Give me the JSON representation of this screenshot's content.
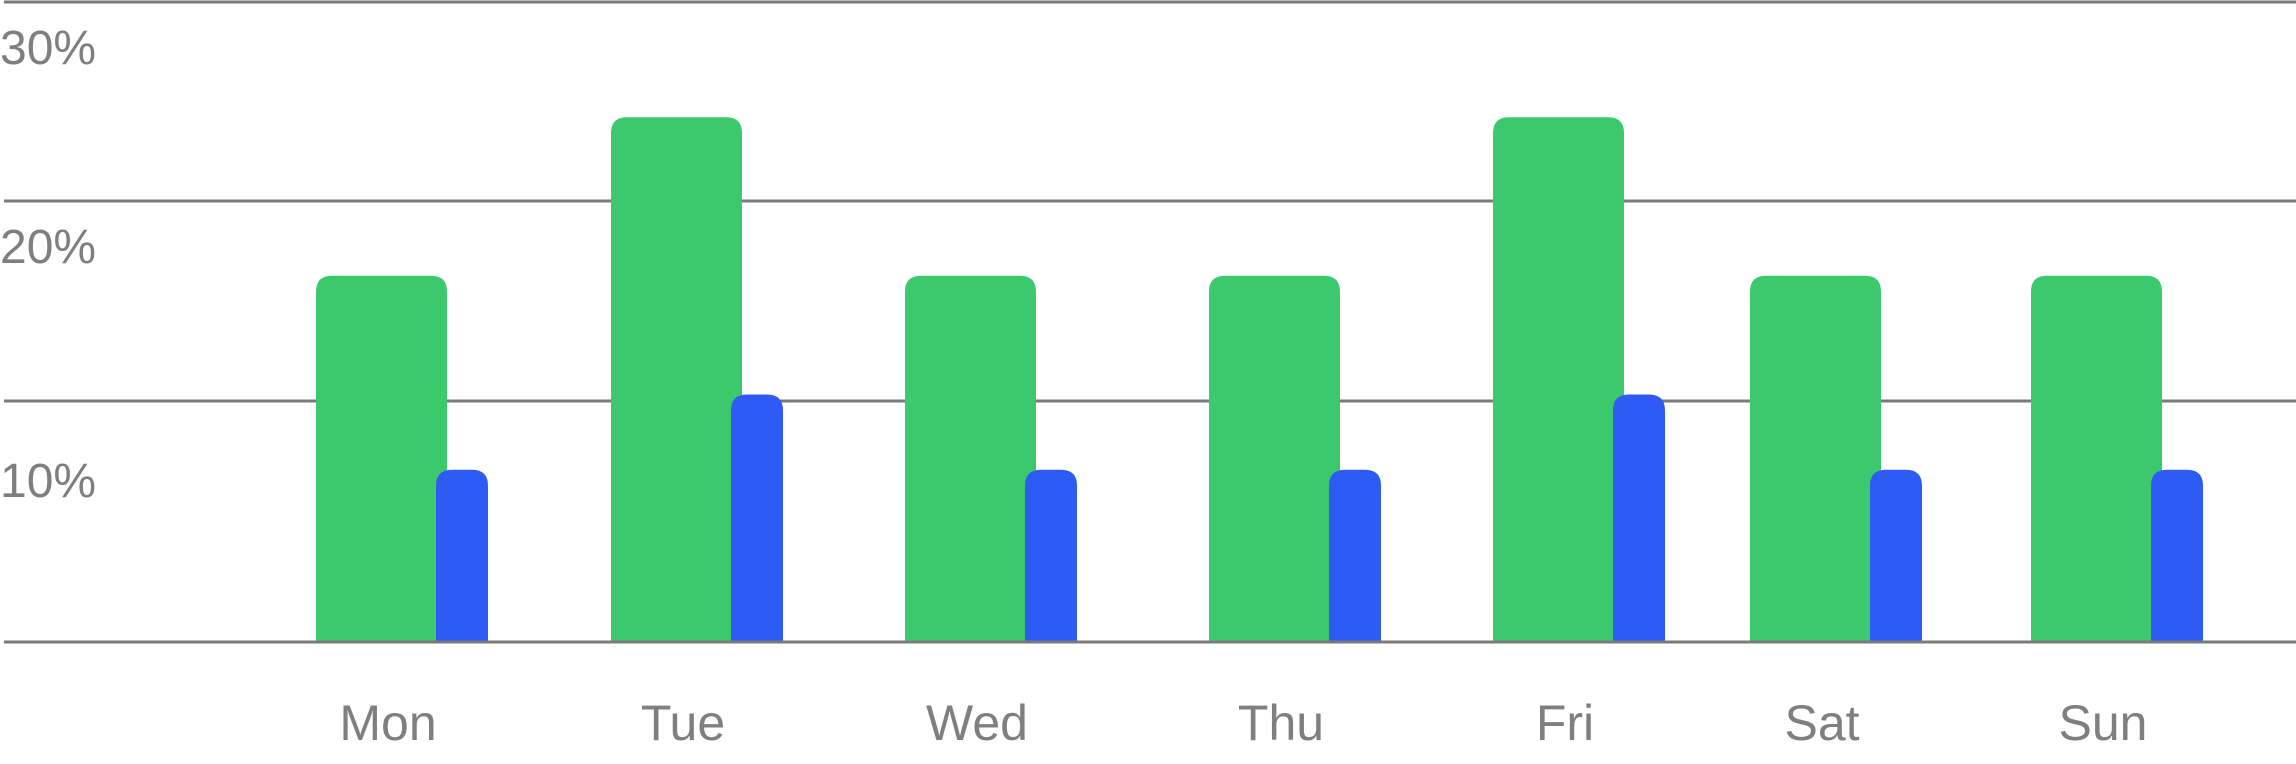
{
  "chart_data": {
    "type": "bar",
    "categories": [
      "Mon",
      "Tue",
      "Wed",
      "Thu",
      "Fri",
      "Sat",
      "Sun"
    ],
    "series": [
      {
        "values": [
          18.5,
          26.5,
          18.5,
          18.5,
          26.5,
          18.5,
          18.5
        ],
        "color": "#3cc96d"
      },
      {
        "values": [
          8.7,
          12.5,
          8.7,
          8.7,
          12.5,
          8.7,
          8.7
        ],
        "color": "#2f5bf5"
      }
    ],
    "y_ticks": [
      {
        "value": 30,
        "label": "30%"
      },
      {
        "value": 20,
        "label": "20%"
      },
      {
        "value": 10,
        "label": "10%"
      }
    ],
    "ylim": [
      0,
      32
    ],
    "grid": true,
    "title": "",
    "xlabel": "",
    "ylabel": ""
  }
}
